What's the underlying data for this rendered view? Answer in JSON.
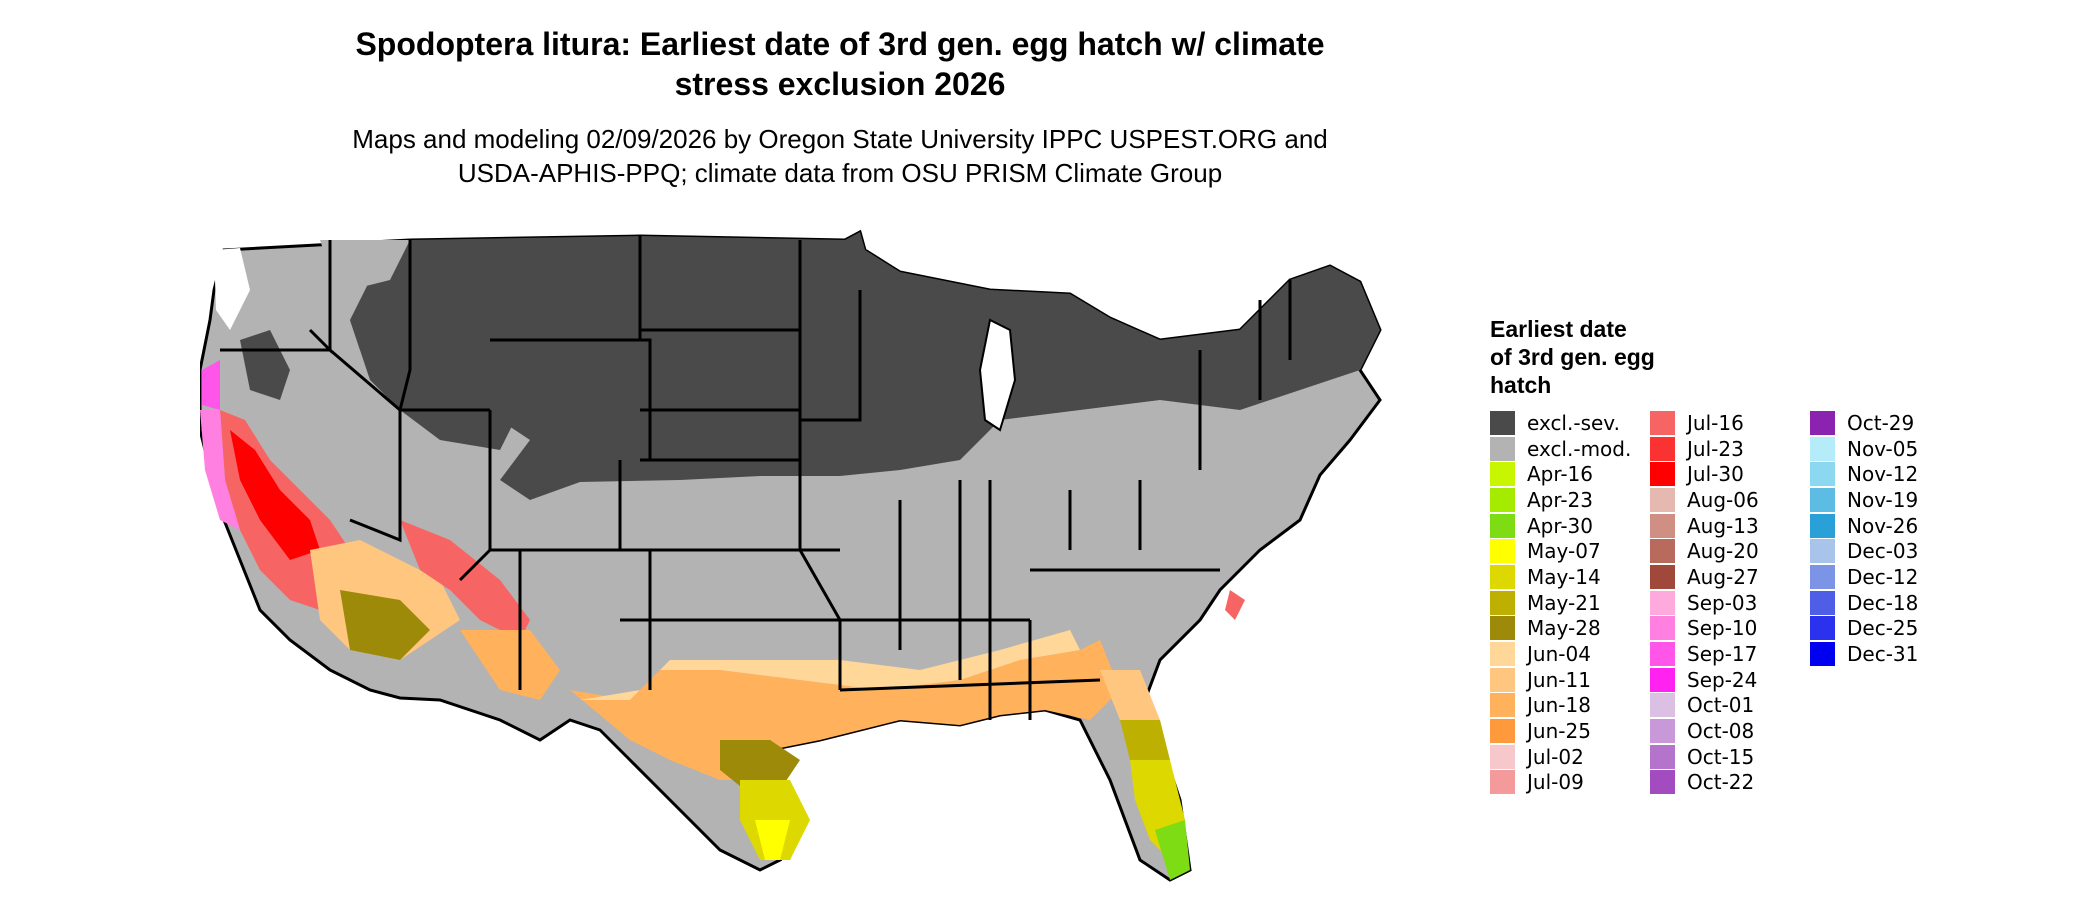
{
  "title_line1": "Spodoptera litura: Earliest date of 3rd gen. egg hatch w/ climate",
  "title_line2": "stress exclusion 2026",
  "subtitle_line1": "Maps and modeling 02/09/2026 by Oregon State University IPPC USPEST.ORG and",
  "subtitle_line2": "USDA-APHIS-PPQ; climate data from OSU PRISM Climate Group",
  "legend": {
    "title_line1": "Earliest date",
    "title_line2": "of 3rd gen. egg",
    "title_line3": "hatch",
    "columns": [
      [
        {
          "label": "excl.-sev.",
          "color": "#4a4a4a"
        },
        {
          "label": "excl.-mod.",
          "color": "#b3b3b3"
        },
        {
          "label": "Apr-16",
          "color": "#c8f500"
        },
        {
          "label": "Apr-23",
          "color": "#a5eb00"
        },
        {
          "label": "Apr-30",
          "color": "#7ddc14"
        },
        {
          "label": "May-07",
          "color": "#ffff00"
        },
        {
          "label": "May-14",
          "color": "#dcd800"
        },
        {
          "label": "May-21",
          "color": "#bdb000"
        },
        {
          "label": "May-28",
          "color": "#9c8a08"
        },
        {
          "label": "Jun-04",
          "color": "#ffd899"
        },
        {
          "label": "Jun-11",
          "color": "#ffc680"
        },
        {
          "label": "Jun-18",
          "color": "#ffb15c"
        },
        {
          "label": "Jun-25",
          "color": "#ff9a3c"
        },
        {
          "label": "Jul-02",
          "color": "#f6c8cc"
        },
        {
          "label": "Jul-09",
          "color": "#f49a9a"
        }
      ],
      [
        {
          "label": "Jul-16",
          "color": "#f76464"
        },
        {
          "label": "Jul-23",
          "color": "#fb3232"
        },
        {
          "label": "Jul-30",
          "color": "#ff0000"
        },
        {
          "label": "Aug-06",
          "color": "#e5b8b0"
        },
        {
          "label": "Aug-13",
          "color": "#cf8f82"
        },
        {
          "label": "Aug-20",
          "color": "#b86a5c"
        },
        {
          "label": "Aug-27",
          "color": "#a0483a"
        },
        {
          "label": "Sep-03",
          "color": "#ffaadd"
        },
        {
          "label": "Sep-10",
          "color": "#ff80e0"
        },
        {
          "label": "Sep-17",
          "color": "#ff55e8"
        },
        {
          "label": "Sep-24",
          "color": "#ff22f0"
        },
        {
          "label": "Oct-01",
          "color": "#dcc0e4"
        },
        {
          "label": "Oct-08",
          "color": "#c898d8"
        },
        {
          "label": "Oct-15",
          "color": "#b474cc"
        },
        {
          "label": "Oct-22",
          "color": "#a24cc0"
        }
      ],
      [
        {
          "label": "Oct-29",
          "color": "#8c22b0"
        },
        {
          "label": "Nov-05",
          "color": "#b4ecfa"
        },
        {
          "label": "Nov-12",
          "color": "#8cd8f0"
        },
        {
          "label": "Nov-19",
          "color": "#5cbce4"
        },
        {
          "label": "Nov-26",
          "color": "#2aa0d8"
        },
        {
          "label": "Dec-03",
          "color": "#a8c4ea"
        },
        {
          "label": "Dec-12",
          "color": "#7c94e6"
        },
        {
          "label": "Dec-18",
          "color": "#4e5ee6"
        },
        {
          "label": "Dec-25",
          "color": "#2a32ee"
        },
        {
          "label": "Dec-31",
          "color": "#0000f0"
        }
      ]
    ]
  }
}
